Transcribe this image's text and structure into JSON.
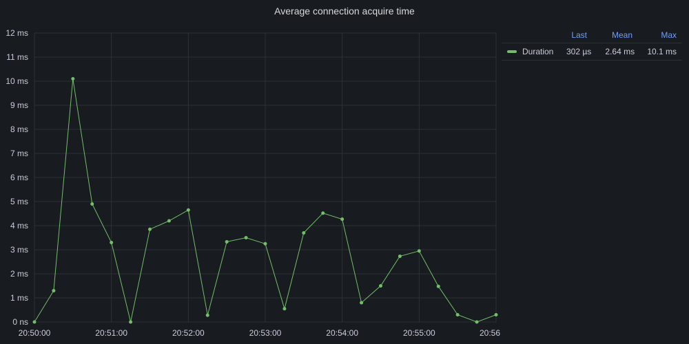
{
  "panel": {
    "title": "Average connection acquire time"
  },
  "legend": {
    "headers": {
      "last": "Last",
      "mean": "Mean",
      "max": "Max"
    },
    "rows": [
      {
        "name": "Duration",
        "last": "302 µs",
        "mean": "2.64 ms",
        "max": "10.1 ms"
      }
    ]
  },
  "colors": {
    "series": "#73bf69",
    "grid": "#2c3235",
    "background": "#181b1f"
  },
  "chart_data": {
    "type": "line",
    "title": "Average connection acquire time",
    "xlabel": "",
    "ylabel": "",
    "unit": "ms",
    "ylim": [
      0,
      12
    ],
    "xlim": [
      "20:50:00",
      "20:56:00"
    ],
    "grid": true,
    "legend_position": "right",
    "y_ticks": [
      "0 ns",
      "1 ms",
      "2 ms",
      "3 ms",
      "4 ms",
      "5 ms",
      "6 ms",
      "7 ms",
      "8 ms",
      "9 ms",
      "10 ms",
      "11 ms",
      "12 ms"
    ],
    "x_ticks": [
      "20:50:00",
      "20:51:00",
      "20:52:00",
      "20:53:00",
      "20:54:00",
      "20:55:00",
      "20:56"
    ],
    "series": [
      {
        "name": "Duration",
        "x": [
          "20:50:00",
          "20:50:15",
          "20:50:30",
          "20:50:45",
          "20:51:00",
          "20:51:15",
          "20:51:30",
          "20:51:45",
          "20:52:00",
          "20:52:15",
          "20:52:30",
          "20:52:45",
          "20:53:00",
          "20:53:15",
          "20:53:30",
          "20:53:45",
          "20:54:00",
          "20:54:15",
          "20:54:30",
          "20:54:45",
          "20:55:00",
          "20:55:15",
          "20:55:30",
          "20:55:45",
          "20:56:00"
        ],
        "values": [
          0,
          1.3,
          10.1,
          4.9,
          3.3,
          0,
          3.85,
          4.2,
          4.65,
          0.28,
          3.33,
          3.5,
          3.25,
          0.55,
          3.7,
          4.52,
          4.27,
          0.8,
          1.5,
          2.73,
          2.95,
          1.48,
          0.3,
          0,
          0.3
        ]
      }
    ]
  }
}
